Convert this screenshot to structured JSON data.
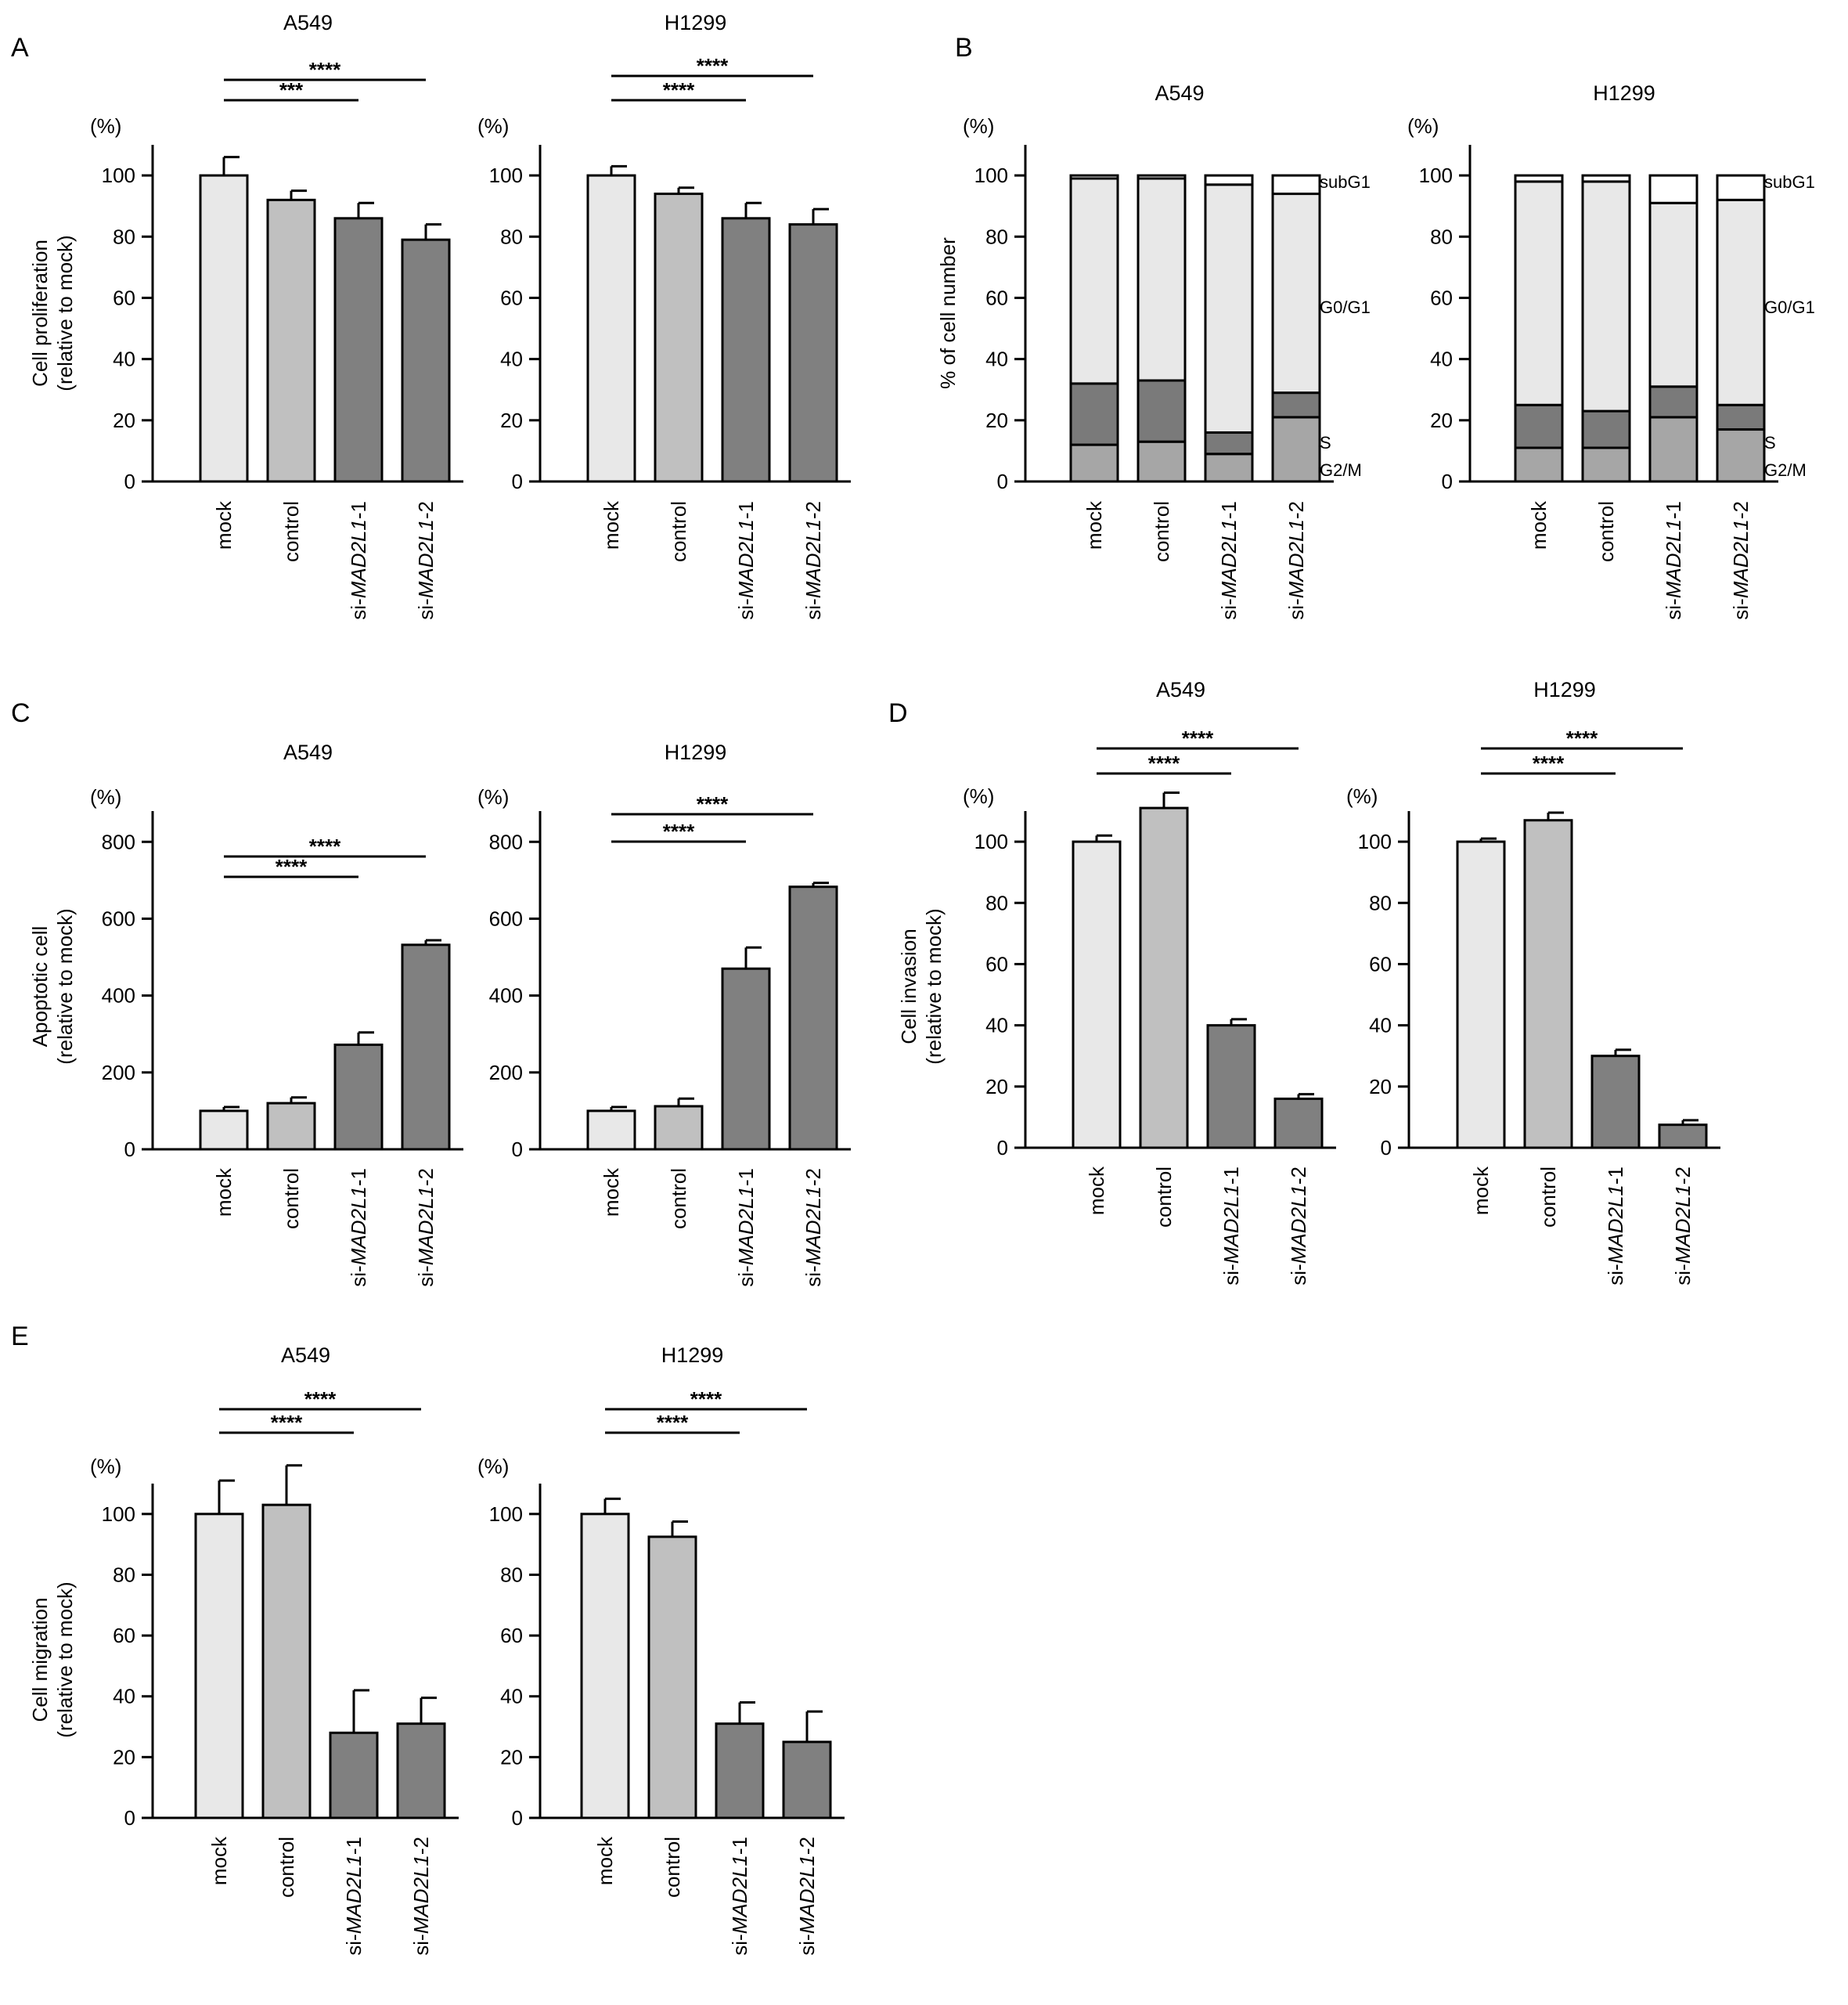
{
  "figure_panels": {
    "A": "A",
    "B": "B",
    "C": "C",
    "D": "D",
    "E": "E"
  },
  "colors": {
    "mock": "#e8e8e8",
    "control": "#c0c0c0",
    "si": "#808080",
    "subG1": "#ffffff",
    "G0G1": "#e8e8e8",
    "S": "#7a7a7a",
    "G2M": "#a6a6a6",
    "line": "#000000"
  },
  "chart_data": [
    {
      "id": "A1",
      "panel": "A",
      "type": "bar",
      "title": "A549",
      "unit_label": "(%)",
      "ylabel": [
        "Cell proliferation",
        "(relative to mock)"
      ],
      "ylim": [
        0,
        110
      ],
      "yticks": [
        0,
        20,
        40,
        60,
        80,
        100
      ],
      "categories": [
        {
          "label": "mock",
          "pre": "",
          "italic": "",
          "post": ""
        },
        {
          "label": "control",
          "pre": "",
          "italic": "",
          "post": ""
        },
        {
          "label": "si-MAD2L1-1",
          "pre": "si-",
          "italic": "MAD2L1",
          "post": "-1"
        },
        {
          "label": "si-MAD2L1-2",
          "pre": "si-",
          "italic": "MAD2L1",
          "post": "-2"
        }
      ],
      "values": [
        100,
        92,
        86,
        79
      ],
      "errors": [
        6,
        3,
        5,
        5
      ],
      "significance": [
        {
          "from": 0,
          "to": 2,
          "label": "***"
        },
        {
          "from": 0,
          "to": 3,
          "label": "****"
        }
      ]
    },
    {
      "id": "A2",
      "panel": "A",
      "type": "bar",
      "title": "H1299",
      "unit_label": "(%)",
      "ylabel": [],
      "ylim": [
        0,
        110
      ],
      "yticks": [
        0,
        20,
        40,
        60,
        80,
        100
      ],
      "categories": [
        {
          "label": "mock",
          "pre": "",
          "italic": "",
          "post": ""
        },
        {
          "label": "control",
          "pre": "",
          "italic": "",
          "post": ""
        },
        {
          "label": "si-MAD2L1-1",
          "pre": "si-",
          "italic": "MAD2L1",
          "post": "-1"
        },
        {
          "label": "si-MAD2L1-2",
          "pre": "si-",
          "italic": "MAD2L1",
          "post": "-2"
        }
      ],
      "values": [
        100,
        94,
        86,
        84
      ],
      "errors": [
        3,
        2,
        5,
        5
      ],
      "significance": [
        {
          "from": 0,
          "to": 2,
          "label": "****"
        },
        {
          "from": 0,
          "to": 3,
          "label": "****"
        }
      ]
    },
    {
      "id": "B1",
      "panel": "B",
      "type": "stacked-bar",
      "title": "A549",
      "unit_label": "(%)",
      "ylabel": [
        "% of cell number"
      ],
      "ylim": [
        0,
        110
      ],
      "yticks": [
        0,
        20,
        40,
        60,
        80,
        100
      ],
      "categories": [
        {
          "label": "mock",
          "pre": "",
          "italic": "",
          "post": ""
        },
        {
          "label": "control",
          "pre": "",
          "italic": "",
          "post": ""
        },
        {
          "label": "si-MAD2L1-1",
          "pre": "si-",
          "italic": "MAD2L1",
          "post": "-1"
        },
        {
          "label": "si-MAD2L1-2",
          "pre": "si-",
          "italic": "MAD2L1",
          "post": "-2"
        }
      ],
      "series": [
        {
          "name": "G2/M",
          "values": [
            12,
            13,
            9,
            21
          ]
        },
        {
          "name": "S",
          "values": [
            20,
            20,
            7,
            8
          ]
        },
        {
          "name": "G0/G1",
          "values": [
            67,
            66,
            81,
            65
          ]
        },
        {
          "name": "subG1",
          "values": [
            1,
            1,
            3,
            6
          ]
        }
      ],
      "phase_labels": [
        "subG1",
        "G0/G1",
        "S",
        "G2/M"
      ]
    },
    {
      "id": "B2",
      "panel": "B",
      "type": "stacked-bar",
      "title": "H1299",
      "unit_label": "(%)",
      "ylabel": [],
      "ylim": [
        0,
        110
      ],
      "yticks": [
        0,
        20,
        40,
        60,
        80,
        100
      ],
      "categories": [
        {
          "label": "mock",
          "pre": "",
          "italic": "",
          "post": ""
        },
        {
          "label": "control",
          "pre": "",
          "italic": "",
          "post": ""
        },
        {
          "label": "si-MAD2L1-1",
          "pre": "si-",
          "italic": "MAD2L1",
          "post": "-1"
        },
        {
          "label": "si-MAD2L1-2",
          "pre": "si-",
          "italic": "MAD2L1",
          "post": "-2"
        }
      ],
      "series": [
        {
          "name": "G2/M",
          "values": [
            11,
            11,
            21,
            17
          ]
        },
        {
          "name": "S",
          "values": [
            14,
            12,
            10,
            8
          ]
        },
        {
          "name": "G0/G1",
          "values": [
            73,
            75,
            60,
            67
          ]
        },
        {
          "name": "subG1",
          "values": [
            2,
            2,
            9,
            8
          ]
        }
      ],
      "phase_labels": [
        "subG1",
        "G0/G1",
        "S",
        "G2/M"
      ]
    },
    {
      "id": "C1",
      "panel": "C",
      "type": "bar",
      "title": "A549",
      "unit_label": "(%)",
      "ylabel": [
        "Apoptotic cell",
        "(relative to mock)"
      ],
      "ylim": [
        0,
        880
      ],
      "yticks": [
        0,
        200,
        400,
        600,
        800
      ],
      "categories": [
        {
          "label": "mock",
          "pre": "",
          "italic": "",
          "post": ""
        },
        {
          "label": "control",
          "pre": "",
          "italic": "",
          "post": ""
        },
        {
          "label": "si-MAD2L1-1",
          "pre": "si-",
          "italic": "MAD2L1",
          "post": "-1"
        },
        {
          "label": "si-MAD2L1-2",
          "pre": "si-",
          "italic": "MAD2L1",
          "post": "-2"
        }
      ],
      "values": [
        100,
        120,
        272,
        532
      ],
      "errors": [
        10,
        15,
        32,
        12
      ],
      "significance": [
        {
          "from": 0,
          "to": 2,
          "label": "****"
        },
        {
          "from": 0,
          "to": 3,
          "label": "****"
        }
      ]
    },
    {
      "id": "C2",
      "panel": "C",
      "type": "bar",
      "title": "H1299",
      "unit_label": "(%)",
      "ylabel": [],
      "ylim": [
        0,
        880
      ],
      "yticks": [
        0,
        200,
        400,
        600,
        800
      ],
      "categories": [
        {
          "label": "mock",
          "pre": "",
          "italic": "",
          "post": ""
        },
        {
          "label": "control",
          "pre": "",
          "italic": "",
          "post": ""
        },
        {
          "label": "si-MAD2L1-1",
          "pre": "si-",
          "italic": "MAD2L1",
          "post": "-1"
        },
        {
          "label": "si-MAD2L1-2",
          "pre": "si-",
          "italic": "MAD2L1",
          "post": "-2"
        }
      ],
      "values": [
        100,
        112,
        470,
        683
      ],
      "errors": [
        10,
        20,
        55,
        10
      ],
      "significance": [
        {
          "from": 0,
          "to": 2,
          "label": "****"
        },
        {
          "from": 0,
          "to": 3,
          "label": "****"
        }
      ]
    },
    {
      "id": "D1",
      "panel": "D",
      "type": "bar",
      "title": "A549",
      "unit_label": "(%)",
      "ylabel": [
        "Cell invasion",
        "(relative to mock)"
      ],
      "ylim": [
        0,
        110
      ],
      "yticks": [
        0,
        20,
        40,
        60,
        80,
        100
      ],
      "categories": [
        {
          "label": "mock",
          "pre": "",
          "italic": "",
          "post": ""
        },
        {
          "label": "control",
          "pre": "",
          "italic": "",
          "post": ""
        },
        {
          "label": "si-MAD2L1-1",
          "pre": "si-",
          "italic": "MAD2L1",
          "post": "-1"
        },
        {
          "label": "si-MAD2L1-2",
          "pre": "si-",
          "italic": "MAD2L1",
          "post": "-2"
        }
      ],
      "values": [
        100,
        111,
        40,
        16
      ],
      "errors": [
        2,
        5,
        2,
        1.5
      ],
      "significance": [
        {
          "from": 0,
          "to": 2,
          "label": "****"
        },
        {
          "from": 0,
          "to": 3,
          "label": "****"
        }
      ]
    },
    {
      "id": "D2",
      "panel": "D",
      "type": "bar",
      "title": "H1299",
      "unit_label": "(%)",
      "ylabel": [],
      "ylim": [
        0,
        110
      ],
      "yticks": [
        0,
        20,
        40,
        60,
        80,
        100
      ],
      "categories": [
        {
          "label": "mock",
          "pre": "",
          "italic": "",
          "post": ""
        },
        {
          "label": "control",
          "pre": "",
          "italic": "",
          "post": ""
        },
        {
          "label": "si-MAD2L1-1",
          "pre": "si-",
          "italic": "MAD2L1",
          "post": "-1"
        },
        {
          "label": "si-MAD2L1-2",
          "pre": "si-",
          "italic": "MAD2L1",
          "post": "-2"
        }
      ],
      "values": [
        100,
        107,
        30,
        7.5
      ],
      "errors": [
        1,
        2.5,
        2,
        1.5
      ],
      "significance": [
        {
          "from": 0,
          "to": 2,
          "label": "****"
        },
        {
          "from": 0,
          "to": 3,
          "label": "****"
        }
      ]
    },
    {
      "id": "E1",
      "panel": "E",
      "type": "bar",
      "title": "A549",
      "unit_label": "(%)",
      "ylabel": [
        "Cell migration",
        "(relative to mock)"
      ],
      "ylim": [
        0,
        110
      ],
      "yticks": [
        0,
        20,
        40,
        60,
        80,
        100
      ],
      "categories": [
        {
          "label": "mock",
          "pre": "",
          "italic": "",
          "post": ""
        },
        {
          "label": "control",
          "pre": "",
          "italic": "",
          "post": ""
        },
        {
          "label": "si-MAD2L1-1",
          "pre": "si-",
          "italic": "MAD2L1",
          "post": "-1"
        },
        {
          "label": "si-MAD2L1-2",
          "pre": "si-",
          "italic": "MAD2L1",
          "post": "-2"
        }
      ],
      "values": [
        100,
        103,
        28,
        31
      ],
      "errors": [
        11,
        13,
        14,
        8.5
      ],
      "significance": [
        {
          "from": 0,
          "to": 2,
          "label": "****"
        },
        {
          "from": 0,
          "to": 3,
          "label": "****"
        }
      ]
    },
    {
      "id": "E2",
      "panel": "E",
      "type": "bar",
      "title": "H1299",
      "unit_label": "(%)",
      "ylabel": [],
      "ylim": [
        0,
        110
      ],
      "yticks": [
        0,
        20,
        40,
        60,
        80,
        100
      ],
      "categories": [
        {
          "label": "mock",
          "pre": "",
          "italic": "",
          "post": ""
        },
        {
          "label": "control",
          "pre": "",
          "italic": "",
          "post": ""
        },
        {
          "label": "si-MAD2L1-1",
          "pre": "si-",
          "italic": "MAD2L1",
          "post": "-1"
        },
        {
          "label": "si-MAD2L1-2",
          "pre": "si-",
          "italic": "MAD2L1",
          "post": "-2"
        }
      ],
      "values": [
        100,
        92.5,
        31,
        25
      ],
      "errors": [
        5,
        5,
        7,
        10
      ],
      "significance": [
        {
          "from": 0,
          "to": 2,
          "label": "****"
        },
        {
          "from": 0,
          "to": 3,
          "label": "****"
        }
      ]
    }
  ]
}
